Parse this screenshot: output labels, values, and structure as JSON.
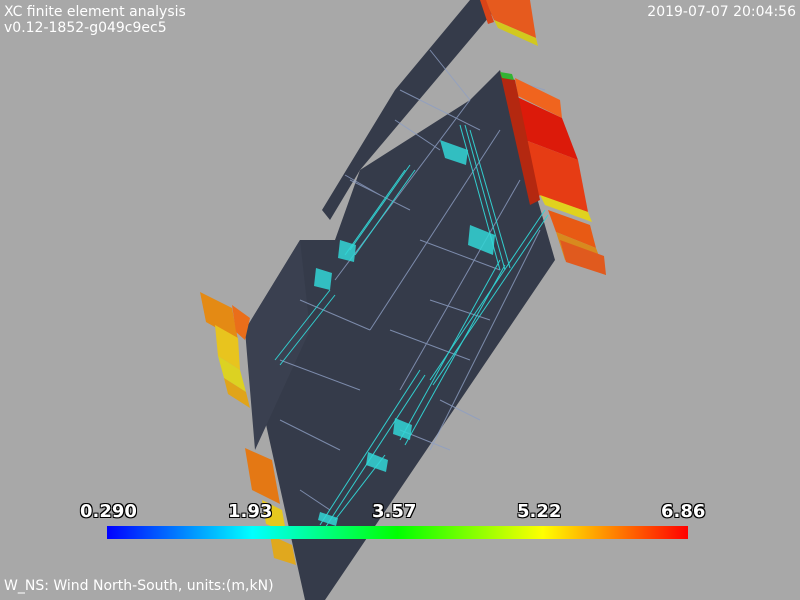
{
  "header": {
    "title": "XC finite element analysis",
    "version": "v0.12-1852-g049c9ec5",
    "timestamp": "2019-07-07 20:04:56"
  },
  "caption": "W_NS: Wind North-South, units:(m,kN)",
  "scalar_bar": {
    "ticks": [
      "0.290",
      "1.93",
      "3.57",
      "5.22",
      "6.86"
    ],
    "min": 0.29,
    "max": 6.86,
    "colormap": [
      "#0000ff",
      "#00ffff",
      "#00ff00",
      "#ffff00",
      "#ff0000"
    ]
  },
  "colors": {
    "background": "#a8a8a8",
    "surface": "#353b4a",
    "mesh_lines": "#8e9fc4",
    "load_arrows": "#32d6d6"
  }
}
